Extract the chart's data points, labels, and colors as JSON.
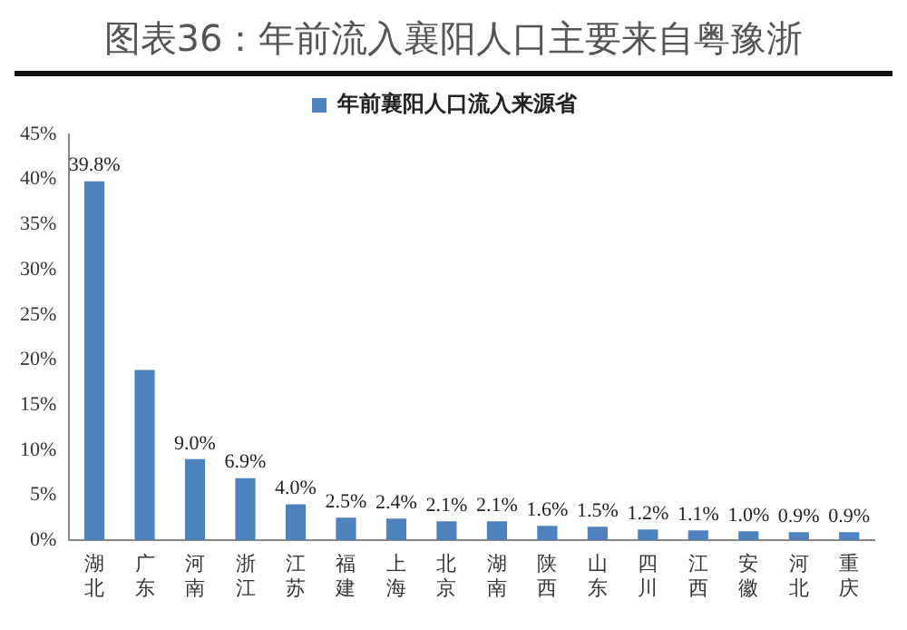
{
  "chart_data": {
    "type": "bar",
    "title": "图表36：年前流入襄阳人口主要来自粤豫浙",
    "categories": [
      "湖北",
      "广东",
      "河南",
      "浙江",
      "江苏",
      "福建",
      "上海",
      "北京",
      "湖南",
      "陕西",
      "山东",
      "四川",
      "江西",
      "安徽",
      "河北",
      "重庆"
    ],
    "series": [
      {
        "name": "年前襄阳人口流入来源省",
        "color": "#4f81bd",
        "values": [
          39.8,
          18.9,
          9.0,
          6.9,
          4.0,
          2.5,
          2.4,
          2.1,
          2.1,
          1.6,
          1.5,
          1.2,
          1.1,
          1.0,
          0.9,
          0.9
        ],
        "value_labels": [
          "39.8%",
          null,
          "9.0%",
          "6.9%",
          "4.0%",
          "2.5%",
          "2.4%",
          "2.1%",
          "2.1%",
          "1.6%",
          "1.5%",
          "1.2%",
          "1.1%",
          "1.0%",
          "0.9%",
          "0.9%"
        ]
      }
    ],
    "ylim": [
      0,
      45
    ],
    "yticks": [
      {
        "value": 0,
        "label": "0%"
      },
      {
        "value": 5,
        "label": "5%"
      },
      {
        "value": 10,
        "label": "10%"
      },
      {
        "value": 15,
        "label": "15%"
      },
      {
        "value": 20,
        "label": "20%"
      },
      {
        "value": 25,
        "label": "25%"
      },
      {
        "value": 30,
        "label": "30%"
      },
      {
        "value": 35,
        "label": "35%"
      },
      {
        "value": 40,
        "label": "40%"
      },
      {
        "value": 45,
        "label": "45%"
      }
    ],
    "grid": false,
    "legend": "top"
  }
}
